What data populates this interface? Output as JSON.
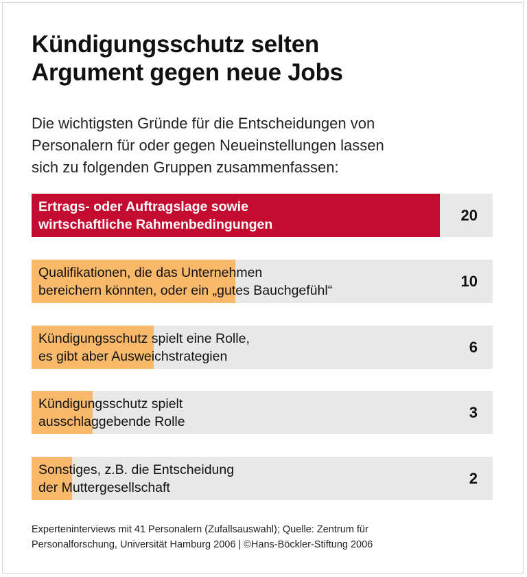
{
  "chart_data": {
    "type": "bar",
    "orientation": "horizontal",
    "title": "Kündigungsschutz selten\nArgument gegen neue Jobs",
    "subtitle": "Die wichtigsten Gründe für die Entscheidungen von\nPersonalern für oder gegen Neueinstellungen lassen\nsich zu folgenden Gruppen zusammenfassen:",
    "categories": [
      "Ertrags- oder Auftragslage sowie\nwirtschaftliche Rahmenbedingungen",
      "Qualifikationen, die das Unternehmen\nbereichern könnten, oder ein „gutes Bauchgefühl“",
      "Kündigungsschutz spielt eine Rolle,\nes gibt aber Ausweichstrategien",
      "Kündigungsschutz spielt\nausschlaggebende Rolle",
      "Sonstiges, z.B. die Entscheidung\nder Muttergesellschaft"
    ],
    "values": [
      20,
      10,
      6,
      3,
      2
    ],
    "labels": [
      "20",
      "10",
      "6",
      "3",
      "2"
    ],
    "xlim": [
      0,
      22.6
    ],
    "colors": {
      "highlight": "#c40c31",
      "bar": "#f9b96b",
      "track": "#e8e8e8"
    },
    "footer": "Experteninterviews mit 41 Personalern (Zufallsauswahl); Quelle: Zentrum für\nPersonalforschung, Universität Hamburg 2006 | ©Hans-Böckler-Stiftung 2006"
  }
}
